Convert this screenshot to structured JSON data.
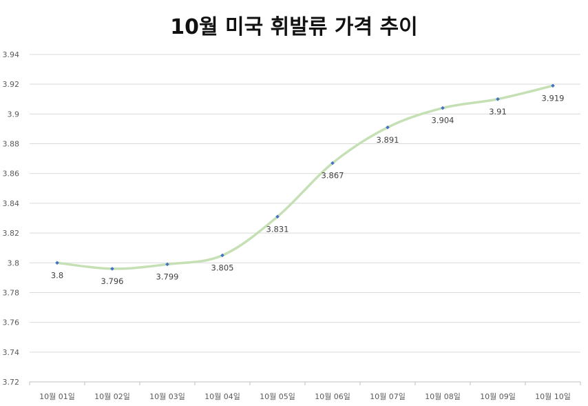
{
  "chart_data": {
    "type": "line",
    "title": "10월 미국 휘발류 가격 추이",
    "categories": [
      "10월 01일",
      "10월 02일",
      "10월 03일",
      "10월 04일",
      "10월 05일",
      "10월 06일",
      "10월 07일",
      "10월 08일",
      "10월 09일",
      "10월 10일"
    ],
    "series": [
      {
        "values": [
          3.8,
          3.796,
          3.799,
          3.805,
          3.831,
          3.867,
          3.891,
          3.904,
          3.91,
          3.919
        ],
        "data_labels": [
          "3.8",
          "3.796",
          "3.799",
          "3.805",
          "3.831",
          "3.867",
          "3.891",
          "3.904",
          "3.91",
          "3.919"
        ],
        "line_color": "#c5e0b4",
        "marker_color": "#4472c4",
        "smooth": true
      }
    ],
    "y_ticks": [
      "3.72",
      "3.74",
      "3.76",
      "3.78",
      "3.8",
      "3.82",
      "3.84",
      "3.86",
      "3.88",
      "3.9",
      "3.92",
      "3.94"
    ],
    "ylim": [
      3.72,
      3.94
    ],
    "xlabel": "",
    "ylabel": "",
    "grid": true,
    "gridline_color": "#d9d9d9",
    "legend": "none"
  }
}
